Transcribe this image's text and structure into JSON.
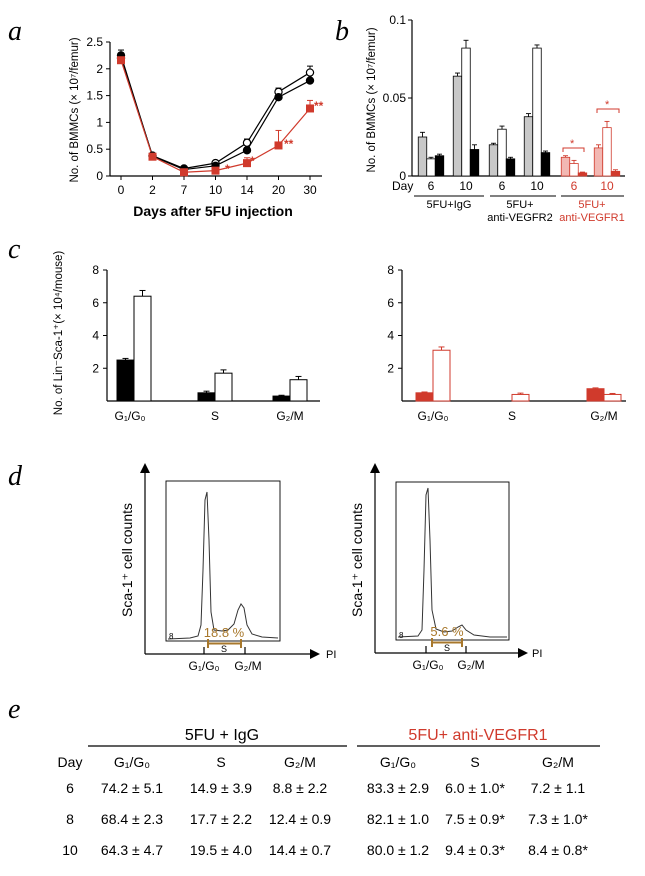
{
  "colors": {
    "red": "#d03a2c",
    "pink": "#f2b8b3",
    "gray": "#c8c8c8",
    "brown": "#a8782c"
  },
  "panels": {
    "a": {
      "letter": "a",
      "ylabel": "No. of BMMCs (× 10⁷/femur)",
      "xlabel": "Days after 5FU injection",
      "yticks": [
        "0",
        "0.5",
        "1",
        "1.5",
        "2",
        "2.5"
      ],
      "xticks": [
        "0",
        "2",
        "7",
        "10",
        "14",
        "20",
        "30"
      ],
      "sig": [
        "*",
        "*",
        "**",
        "**"
      ]
    },
    "b": {
      "letter": "b",
      "ylabel": "No. of BMMCs (× 10⁷/femur)",
      "yticks": [
        "0",
        "0.05",
        "0.1"
      ],
      "day_label": "Day",
      "days": [
        "6",
        "10",
        "6",
        "10",
        "6",
        "10"
      ],
      "groups": [
        "5FU+IgG",
        "5FU+",
        "anti-VEGFR2",
        "5FU+",
        "anti-VEGFR1"
      ],
      "sig": [
        "*",
        "*"
      ]
    },
    "c": {
      "letter": "c",
      "ylabel": "No. of Lin⁻Sca-1⁺(× 10⁴/mouse)",
      "yticks": [
        "0",
        "2",
        "4",
        "6",
        "8"
      ],
      "phases": [
        "G₁/G₀",
        "S",
        "G₂/M"
      ]
    },
    "d": {
      "letter": "d",
      "ylabel": "Sca-1⁺ cell counts",
      "xlabel": "PI",
      "left_pct": "18.8 %",
      "right_pct": "5.6 %",
      "s_label": "S",
      "g1_label": "G₁/G₀",
      "g2_label": "G₂/M",
      "corner": "8"
    },
    "e": {
      "letter": "e",
      "group1": "5FU + IgG",
      "group2": "5FU+ anti-VEGFR1",
      "header": [
        "Day",
        "G₁/G₀",
        "S",
        "G₂/M",
        "G₁/G₀",
        "S",
        "G₂/M"
      ],
      "rows": [
        [
          "6",
          "74.2 ± 5.1",
          "14.9 ± 3.9",
          "8.8 ± 2.2",
          "83.3 ± 2.9",
          "6.0 ± 1.0*",
          "7.2 ± 1.1"
        ],
        [
          "8",
          "68.4 ± 2.3",
          "17.7 ± 2.2",
          "12.4 ± 0.9",
          "82.1 ± 1.0",
          "7.5 ± 0.9*",
          "7.3 ± 1.0*"
        ],
        [
          "10",
          "64.3 ± 4.7",
          "19.5 ± 4.0",
          "14.4 ± 0.7",
          "80.0 ± 1.2",
          "9.4 ± 0.3*",
          "8.4 ± 0.8*"
        ]
      ]
    }
  },
  "chart_data": [
    {
      "type": "line",
      "title": "",
      "xlabel": "Days after 5FU injection",
      "ylabel": "No. of BMMCs (× 10⁷/femur)",
      "categories": [
        "0",
        "2",
        "7",
        "10",
        "14",
        "20",
        "30"
      ],
      "ylim": [
        0,
        2.5
      ],
      "series": [
        {
          "name": "open circles",
          "values": [
            2.2,
            0.38,
            0.14,
            0.24,
            0.62,
            1.57,
            1.93
          ],
          "errors": [
            0.08,
            0.02,
            0.03,
            0.05,
            0.07,
            0.07,
            0.12
          ]
        },
        {
          "name": "filled circles",
          "values": [
            2.25,
            0.37,
            0.12,
            0.19,
            0.48,
            1.47,
            1.78
          ],
          "errors": [
            0.1,
            0.02,
            0.02,
            0.04,
            0.05,
            0.07,
            0.13
          ]
        },
        {
          "name": "red squares (anti-VEGFR1)",
          "values": [
            2.16,
            0.36,
            0.07,
            0.1,
            0.24,
            0.57,
            1.26
          ],
          "errors": [
            0.06,
            0.02,
            0.02,
            0.04,
            0.1,
            0.28,
            0.15
          ]
        }
      ]
    },
    {
      "type": "bar",
      "title": "",
      "ylabel": "No. of BMMCs (× 10⁷/femur)",
      "ylim": [
        0,
        0.1
      ],
      "categories": [
        "6",
        "10",
        "6",
        "10",
        "6",
        "10"
      ],
      "groups": [
        "5FU+IgG",
        "5FU+ anti-VEGFR2",
        "5FU+ anti-VEGFR1"
      ],
      "series": [
        {
          "name": "gray",
          "values": [
            0.025,
            0.064,
            0.02,
            0.038,
            0.012,
            0.018
          ],
          "errors": [
            0.003,
            0.002,
            0.001,
            0.002,
            0.001,
            0.002
          ]
        },
        {
          "name": "white",
          "values": [
            0.011,
            0.082,
            0.03,
            0.082,
            0.008,
            0.031
          ],
          "errors": [
            0.001,
            0.005,
            0.002,
            0.002,
            0.002,
            0.004
          ]
        },
        {
          "name": "black",
          "values": [
            0.013,
            0.017,
            0.011,
            0.015,
            0.002,
            0.003
          ],
          "errors": [
            0.001,
            0.003,
            0.001,
            0.001,
            0.0005,
            0.001
          ]
        }
      ]
    },
    {
      "type": "bar",
      "title": "",
      "ylabel": "No. of Lin⁻Sca-1⁺(× 10⁴/mouse)",
      "ylim": [
        0,
        8
      ],
      "categories": [
        "G₁/G₀",
        "S",
        "G₂/M"
      ],
      "series": [
        {
          "name": "5FU+IgG filled",
          "values": [
            2.5,
            0.5,
            0.3
          ],
          "errors": [
            0.1,
            0.1,
            0.05
          ]
        },
        {
          "name": "5FU+IgG open",
          "values": [
            6.4,
            1.7,
            1.3
          ],
          "errors": [
            0.35,
            0.2,
            0.2
          ]
        }
      ]
    },
    {
      "type": "bar",
      "title": "",
      "ylabel": "No. of Lin⁻Sca-1⁺(× 10⁴/mouse)",
      "ylim": [
        0,
        8
      ],
      "categories": [
        "G₁/G₀",
        "S",
        "G₂/M"
      ],
      "series": [
        {
          "name": "anti-VEGFR1 filled",
          "values": [
            0.5,
            0.0,
            0.75
          ],
          "errors": [
            0.05,
            0.0,
            0.05
          ]
        },
        {
          "name": "anti-VEGFR1 open",
          "values": [
            3.1,
            0.4,
            0.4
          ],
          "errors": [
            0.2,
            0.08,
            0.06
          ]
        }
      ]
    }
  ]
}
